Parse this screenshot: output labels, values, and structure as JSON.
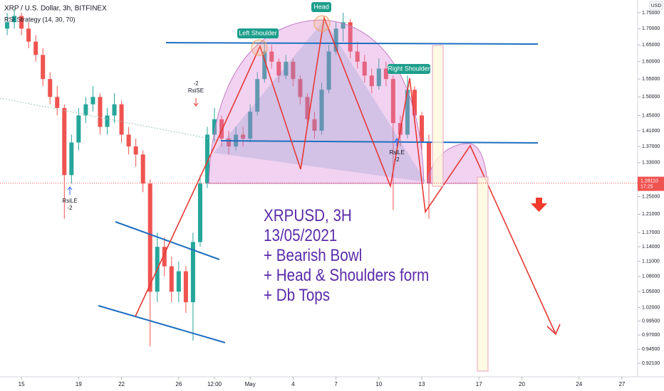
{
  "chart_data": {
    "type": "candlestick",
    "title": "XRP / U.S. Dollar, 3h, BITFINEX",
    "indicator": "RSI Strategy (14, 30, 70)",
    "currency": "USD",
    "log_scale": true,
    "up_color": "#26a69a",
    "down_color": "#ef5350",
    "x": [
      -1,
      -0.5,
      0,
      0.5,
      1,
      1.5,
      2,
      2.5,
      3,
      3.5,
      4,
      4.5,
      5,
      5.5,
      6,
      6.5,
      7,
      7.5,
      8,
      8.5,
      9,
      9.5,
      10,
      10.5,
      11,
      11.5,
      12,
      12.5,
      13,
      13.5,
      14,
      14.5,
      15,
      15.5,
      16,
      16.5,
      17,
      17.5,
      18,
      18.5,
      19,
      19.5,
      20,
      20.5,
      21,
      21.5,
      22,
      22.5,
      23,
      23.5,
      24,
      24.5,
      25,
      25.5,
      26,
      26.5,
      27,
      27.5,
      28,
      28.5
    ],
    "open": [
      1.7,
      1.72,
      1.74,
      1.7,
      1.66,
      1.62,
      1.55,
      1.5,
      1.47,
      1.3,
      1.38,
      1.45,
      1.48,
      1.5,
      1.42,
      1.45,
      1.48,
      1.4,
      1.37,
      1.35,
      1.28,
      1.05,
      1.14,
      1.1,
      1.05,
      1.09,
      1.03,
      1.15,
      1.28,
      1.4,
      1.44,
      1.39,
      1.37,
      1.4,
      1.39,
      1.46,
      1.55,
      1.63,
      1.6,
      1.56,
      1.6,
      1.55,
      1.5,
      1.44,
      1.41,
      1.52,
      1.63,
      1.7,
      1.72,
      1.63,
      1.6,
      1.56,
      1.53,
      1.58,
      1.55,
      1.43,
      1.4,
      1.52,
      1.45,
      1.38
    ],
    "high": [
      1.75,
      1.76,
      1.75,
      1.72,
      1.68,
      1.64,
      1.57,
      1.53,
      1.48,
      1.4,
      1.47,
      1.5,
      1.53,
      1.51,
      1.47,
      1.51,
      1.49,
      1.42,
      1.39,
      1.36,
      1.29,
      1.17,
      1.16,
      1.12,
      1.11,
      1.1,
      1.17,
      1.3,
      1.42,
      1.47,
      1.45,
      1.41,
      1.42,
      1.42,
      1.48,
      1.57,
      1.66,
      1.65,
      1.61,
      1.62,
      1.61,
      1.56,
      1.51,
      1.46,
      1.54,
      1.65,
      1.72,
      1.75,
      1.73,
      1.66,
      1.62,
      1.58,
      1.61,
      1.6,
      1.56,
      1.45,
      1.56,
      1.53,
      1.46,
      1.4
    ],
    "low": [
      1.68,
      1.7,
      1.68,
      1.64,
      1.6,
      1.53,
      1.48,
      1.45,
      1.2,
      1.28,
      1.36,
      1.43,
      1.46,
      1.4,
      1.4,
      1.43,
      1.38,
      1.35,
      1.32,
      1.26,
      0.95,
      1.03,
      1.08,
      1.03,
      1.03,
      1.01,
      0.96,
      1.14,
      1.27,
      1.38,
      1.37,
      1.35,
      1.36,
      1.37,
      1.38,
      1.45,
      1.54,
      1.58,
      1.54,
      1.55,
      1.53,
      1.48,
      1.42,
      1.39,
      1.4,
      1.51,
      1.62,
      1.66,
      1.61,
      1.58,
      1.54,
      1.51,
      1.52,
      1.53,
      1.22,
      1.37,
      1.39,
      1.43,
      1.36,
      1.2
    ],
    "close": [
      1.72,
      1.74,
      1.7,
      1.66,
      1.62,
      1.55,
      1.5,
      1.47,
      1.3,
      1.38,
      1.45,
      1.48,
      1.5,
      1.42,
      1.45,
      1.48,
      1.4,
      1.37,
      1.35,
      1.28,
      1.05,
      1.14,
      1.1,
      1.05,
      1.09,
      1.03,
      1.15,
      1.28,
      1.4,
      1.44,
      1.39,
      1.37,
      1.4,
      1.39,
      1.46,
      1.55,
      1.63,
      1.6,
      1.56,
      1.6,
      1.55,
      1.5,
      1.44,
      1.41,
      1.52,
      1.63,
      1.7,
      1.72,
      1.63,
      1.6,
      1.56,
      1.53,
      1.58,
      1.55,
      1.43,
      1.4,
      1.52,
      1.45,
      1.38,
      1.28
    ],
    "xlim": [
      -1.5,
      43.1
    ],
    "ylim": [
      0.8985,
      1.7915
    ],
    "xticks": [
      {
        "value": 0,
        "label": "15"
      },
      {
        "value": 4,
        "label": "19"
      },
      {
        "value": 7,
        "label": "22"
      },
      {
        "value": 11,
        "label": "26"
      },
      {
        "value": 13.5,
        "label": "12:00"
      },
      {
        "value": 16,
        "label": "May"
      },
      {
        "value": 19,
        "label": "4"
      },
      {
        "value": 22,
        "label": "7"
      },
      {
        "value": 25,
        "label": "10"
      },
      {
        "value": 28,
        "label": "13"
      },
      {
        "value": 32,
        "label": "17"
      },
      {
        "value": 35,
        "label": "20"
      },
      {
        "value": 39,
        "label": "24"
      },
      {
        "value": 42,
        "label": "27"
      }
    ],
    "yticks": [
      {
        "value": 1.75,
        "label": "1.75000"
      },
      {
        "value": 1.7,
        "label": "1.70000"
      },
      {
        "value": 1.65,
        "label": "1.65000"
      },
      {
        "value": 1.6,
        "label": "1.60000"
      },
      {
        "value": 1.55,
        "label": "1.55000"
      },
      {
        "value": 1.5,
        "label": "1.50000"
      },
      {
        "value": 1.45,
        "label": "1.45000"
      },
      {
        "value": 1.41,
        "label": "1.41000"
      },
      {
        "value": 1.37,
        "label": "1.37000"
      },
      {
        "value": 1.33,
        "label": "1.33000"
      },
      {
        "value": 1.25,
        "label": "1.25000"
      },
      {
        "value": 1.21,
        "label": "1.21000"
      },
      {
        "value": 1.17,
        "label": "1.17000"
      },
      {
        "value": 1.14,
        "label": "1.14000"
      },
      {
        "value": 1.11,
        "label": "1.11000"
      },
      {
        "value": 1.08,
        "label": "1.08000"
      },
      {
        "value": 1.05,
        "label": "1.05000"
      },
      {
        "value": 1.02,
        "label": "1.02000"
      },
      {
        "value": 0.995,
        "label": "0.99500"
      },
      {
        "value": 0.97,
        "label": "0.97000"
      },
      {
        "value": 0.945,
        "label": "0.94500"
      },
      {
        "value": 0.921,
        "label": "0.92100"
      }
    ],
    "last_price": {
      "value": 1.2811,
      "label": "1.28110"
    },
    "countdown": "17:25",
    "pattern_labels": [
      "Left Shoulder",
      "Head",
      "Right Shoulder"
    ],
    "signals": [
      {
        "qty": "-2",
        "name": "RsiSE"
      },
      {
        "name": "RsiLE",
        "qty": "-2"
      },
      {
        "name": "RsiLE",
        "qty": "-2"
      }
    ],
    "note": [
      "XRPUSD, 3H",
      "13/05/2021",
      "+ Bearish Bowl",
      "+ Head & Shoulders form",
      "+ Db Tops"
    ]
  }
}
